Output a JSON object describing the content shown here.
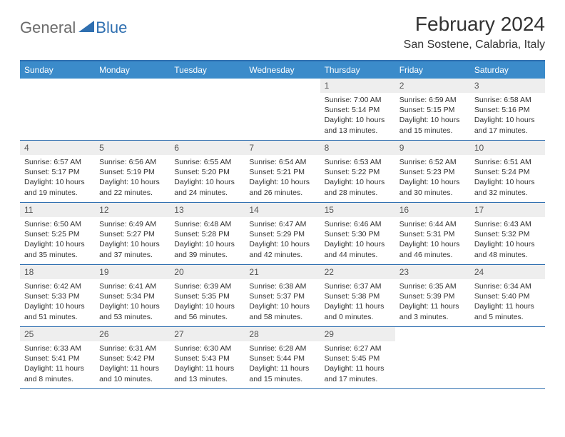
{
  "logo": {
    "general": "General",
    "blue": "Blue",
    "icon_color": "#2f6fb0"
  },
  "title": {
    "month": "February 2024",
    "location": "San Sostene, Calabria, Italy"
  },
  "colors": {
    "header_bar": "#3b8bca",
    "header_border": "#2f6fb0",
    "day_number_bg": "#eeeeee",
    "text": "#333333"
  },
  "weekdays": [
    "Sunday",
    "Monday",
    "Tuesday",
    "Wednesday",
    "Thursday",
    "Friday",
    "Saturday"
  ],
  "weeks": [
    [
      {
        "empty": true
      },
      {
        "empty": true
      },
      {
        "empty": true
      },
      {
        "empty": true
      },
      {
        "num": "1",
        "sunrise": "Sunrise: 7:00 AM",
        "sunset": "Sunset: 5:14 PM",
        "daylight1": "Daylight: 10 hours",
        "daylight2": "and 13 minutes."
      },
      {
        "num": "2",
        "sunrise": "Sunrise: 6:59 AM",
        "sunset": "Sunset: 5:15 PM",
        "daylight1": "Daylight: 10 hours",
        "daylight2": "and 15 minutes."
      },
      {
        "num": "3",
        "sunrise": "Sunrise: 6:58 AM",
        "sunset": "Sunset: 5:16 PM",
        "daylight1": "Daylight: 10 hours",
        "daylight2": "and 17 minutes."
      }
    ],
    [
      {
        "num": "4",
        "sunrise": "Sunrise: 6:57 AM",
        "sunset": "Sunset: 5:17 PM",
        "daylight1": "Daylight: 10 hours",
        "daylight2": "and 19 minutes."
      },
      {
        "num": "5",
        "sunrise": "Sunrise: 6:56 AM",
        "sunset": "Sunset: 5:19 PM",
        "daylight1": "Daylight: 10 hours",
        "daylight2": "and 22 minutes."
      },
      {
        "num": "6",
        "sunrise": "Sunrise: 6:55 AM",
        "sunset": "Sunset: 5:20 PM",
        "daylight1": "Daylight: 10 hours",
        "daylight2": "and 24 minutes."
      },
      {
        "num": "7",
        "sunrise": "Sunrise: 6:54 AM",
        "sunset": "Sunset: 5:21 PM",
        "daylight1": "Daylight: 10 hours",
        "daylight2": "and 26 minutes."
      },
      {
        "num": "8",
        "sunrise": "Sunrise: 6:53 AM",
        "sunset": "Sunset: 5:22 PM",
        "daylight1": "Daylight: 10 hours",
        "daylight2": "and 28 minutes."
      },
      {
        "num": "9",
        "sunrise": "Sunrise: 6:52 AM",
        "sunset": "Sunset: 5:23 PM",
        "daylight1": "Daylight: 10 hours",
        "daylight2": "and 30 minutes."
      },
      {
        "num": "10",
        "sunrise": "Sunrise: 6:51 AM",
        "sunset": "Sunset: 5:24 PM",
        "daylight1": "Daylight: 10 hours",
        "daylight2": "and 32 minutes."
      }
    ],
    [
      {
        "num": "11",
        "sunrise": "Sunrise: 6:50 AM",
        "sunset": "Sunset: 5:25 PM",
        "daylight1": "Daylight: 10 hours",
        "daylight2": "and 35 minutes."
      },
      {
        "num": "12",
        "sunrise": "Sunrise: 6:49 AM",
        "sunset": "Sunset: 5:27 PM",
        "daylight1": "Daylight: 10 hours",
        "daylight2": "and 37 minutes."
      },
      {
        "num": "13",
        "sunrise": "Sunrise: 6:48 AM",
        "sunset": "Sunset: 5:28 PM",
        "daylight1": "Daylight: 10 hours",
        "daylight2": "and 39 minutes."
      },
      {
        "num": "14",
        "sunrise": "Sunrise: 6:47 AM",
        "sunset": "Sunset: 5:29 PM",
        "daylight1": "Daylight: 10 hours",
        "daylight2": "and 42 minutes."
      },
      {
        "num": "15",
        "sunrise": "Sunrise: 6:46 AM",
        "sunset": "Sunset: 5:30 PM",
        "daylight1": "Daylight: 10 hours",
        "daylight2": "and 44 minutes."
      },
      {
        "num": "16",
        "sunrise": "Sunrise: 6:44 AM",
        "sunset": "Sunset: 5:31 PM",
        "daylight1": "Daylight: 10 hours",
        "daylight2": "and 46 minutes."
      },
      {
        "num": "17",
        "sunrise": "Sunrise: 6:43 AM",
        "sunset": "Sunset: 5:32 PM",
        "daylight1": "Daylight: 10 hours",
        "daylight2": "and 48 minutes."
      }
    ],
    [
      {
        "num": "18",
        "sunrise": "Sunrise: 6:42 AM",
        "sunset": "Sunset: 5:33 PM",
        "daylight1": "Daylight: 10 hours",
        "daylight2": "and 51 minutes."
      },
      {
        "num": "19",
        "sunrise": "Sunrise: 6:41 AM",
        "sunset": "Sunset: 5:34 PM",
        "daylight1": "Daylight: 10 hours",
        "daylight2": "and 53 minutes."
      },
      {
        "num": "20",
        "sunrise": "Sunrise: 6:39 AM",
        "sunset": "Sunset: 5:35 PM",
        "daylight1": "Daylight: 10 hours",
        "daylight2": "and 56 minutes."
      },
      {
        "num": "21",
        "sunrise": "Sunrise: 6:38 AM",
        "sunset": "Sunset: 5:37 PM",
        "daylight1": "Daylight: 10 hours",
        "daylight2": "and 58 minutes."
      },
      {
        "num": "22",
        "sunrise": "Sunrise: 6:37 AM",
        "sunset": "Sunset: 5:38 PM",
        "daylight1": "Daylight: 11 hours",
        "daylight2": "and 0 minutes."
      },
      {
        "num": "23",
        "sunrise": "Sunrise: 6:35 AM",
        "sunset": "Sunset: 5:39 PM",
        "daylight1": "Daylight: 11 hours",
        "daylight2": "and 3 minutes."
      },
      {
        "num": "24",
        "sunrise": "Sunrise: 6:34 AM",
        "sunset": "Sunset: 5:40 PM",
        "daylight1": "Daylight: 11 hours",
        "daylight2": "and 5 minutes."
      }
    ],
    [
      {
        "num": "25",
        "sunrise": "Sunrise: 6:33 AM",
        "sunset": "Sunset: 5:41 PM",
        "daylight1": "Daylight: 11 hours",
        "daylight2": "and 8 minutes."
      },
      {
        "num": "26",
        "sunrise": "Sunrise: 6:31 AM",
        "sunset": "Sunset: 5:42 PM",
        "daylight1": "Daylight: 11 hours",
        "daylight2": "and 10 minutes."
      },
      {
        "num": "27",
        "sunrise": "Sunrise: 6:30 AM",
        "sunset": "Sunset: 5:43 PM",
        "daylight1": "Daylight: 11 hours",
        "daylight2": "and 13 minutes."
      },
      {
        "num": "28",
        "sunrise": "Sunrise: 6:28 AM",
        "sunset": "Sunset: 5:44 PM",
        "daylight1": "Daylight: 11 hours",
        "daylight2": "and 15 minutes."
      },
      {
        "num": "29",
        "sunrise": "Sunrise: 6:27 AM",
        "sunset": "Sunset: 5:45 PM",
        "daylight1": "Daylight: 11 hours",
        "daylight2": "and 17 minutes."
      },
      {
        "empty": true
      },
      {
        "empty": true
      }
    ]
  ]
}
